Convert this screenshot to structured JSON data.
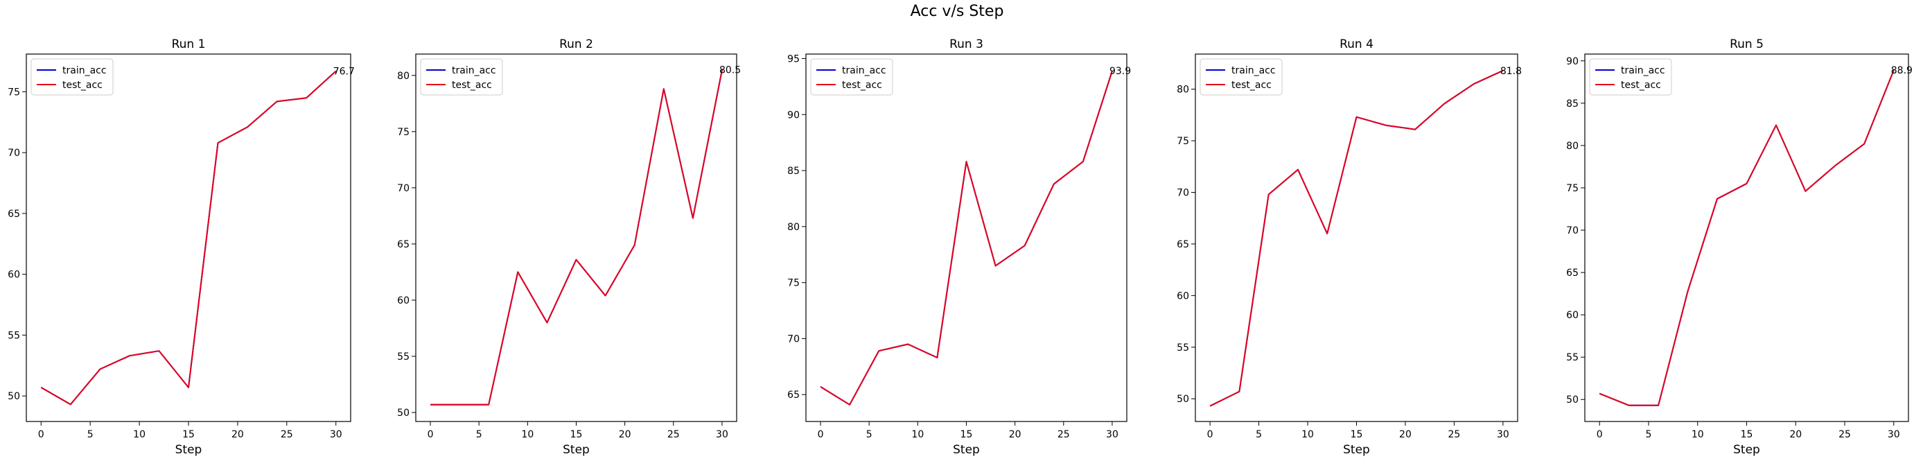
{
  "figure_title": "Acc v/s Step",
  "chart_data": [
    {
      "type": "line",
      "title": "Run 1",
      "xlabel": "Step",
      "ylabel": "",
      "x": [
        0,
        3,
        6,
        9,
        12,
        15,
        18,
        21,
        24,
        27,
        30
      ],
      "xticks": [
        0,
        5,
        10,
        15,
        20,
        25,
        30
      ],
      "yticks": [
        50,
        55,
        60,
        65,
        70,
        75
      ],
      "xlim": [
        -1.5,
        31.5
      ],
      "ylim": [
        47.9,
        78.1
      ],
      "end_label": "76.7",
      "legend": "top-left",
      "series": [
        {
          "name": "train_acc",
          "color": "#0000cc",
          "values": [
            50.7,
            49.3,
            52.2,
            53.3,
            53.7,
            50.7,
            70.8,
            72.1,
            74.2,
            74.5,
            76.7
          ]
        },
        {
          "name": "test_acc",
          "color": "#e6001a",
          "values": [
            50.7,
            49.3,
            52.2,
            53.3,
            53.7,
            50.7,
            70.8,
            72.1,
            74.2,
            74.5,
            76.7
          ]
        }
      ]
    },
    {
      "type": "line",
      "title": "Run 2",
      "xlabel": "Step",
      "ylabel": "",
      "x": [
        0,
        3,
        6,
        9,
        12,
        15,
        18,
        21,
        24,
        27,
        30
      ],
      "xticks": [
        0,
        5,
        10,
        15,
        20,
        25,
        30
      ],
      "yticks": [
        50,
        55,
        60,
        65,
        70,
        75,
        80
      ],
      "xlim": [
        -1.5,
        31.5
      ],
      "ylim": [
        49.2,
        81.9
      ],
      "end_label": "80.5",
      "legend": "top-left",
      "series": [
        {
          "name": "train_acc",
          "color": "#0000cc",
          "values": [
            50.7,
            50.7,
            50.7,
            62.5,
            58.0,
            63.6,
            60.4,
            64.9,
            78.8,
            67.3,
            80.5
          ]
        },
        {
          "name": "test_acc",
          "color": "#e6001a",
          "values": [
            50.7,
            50.7,
            50.7,
            62.5,
            58.0,
            63.6,
            60.4,
            64.9,
            78.8,
            67.3,
            80.5
          ]
        }
      ]
    },
    {
      "type": "line",
      "title": "Run 3",
      "xlabel": "Step",
      "ylabel": "",
      "x": [
        0,
        3,
        6,
        9,
        12,
        15,
        18,
        21,
        24,
        27,
        30
      ],
      "xticks": [
        0,
        5,
        10,
        15,
        20,
        25,
        30
      ],
      "yticks": [
        65,
        70,
        75,
        80,
        85,
        90,
        95
      ],
      "xlim": [
        -1.5,
        31.5
      ],
      "ylim": [
        62.6,
        95.4
      ],
      "end_label": "93.9",
      "legend": "top-left",
      "series": [
        {
          "name": "train_acc",
          "color": "#0000cc",
          "values": [
            65.7,
            64.1,
            68.9,
            69.5,
            68.3,
            85.8,
            76.5,
            78.3,
            83.8,
            85.8,
            93.9
          ]
        },
        {
          "name": "test_acc",
          "color": "#e6001a",
          "values": [
            65.7,
            64.1,
            68.9,
            69.5,
            68.3,
            85.8,
            76.5,
            78.3,
            83.8,
            85.8,
            93.9
          ]
        }
      ]
    },
    {
      "type": "line",
      "title": "Run 4",
      "xlabel": "Step",
      "ylabel": "",
      "x": [
        0,
        3,
        6,
        9,
        12,
        15,
        18,
        21,
        24,
        27,
        30
      ],
      "xticks": [
        0,
        5,
        10,
        15,
        20,
        25,
        30
      ],
      "yticks": [
        50,
        55,
        60,
        65,
        70,
        75,
        80
      ],
      "xlim": [
        -1.5,
        31.5
      ],
      "ylim": [
        47.8,
        83.4
      ],
      "end_label": "81.8",
      "legend": "top-left",
      "series": [
        {
          "name": "train_acc",
          "color": "#0000cc",
          "values": [
            49.3,
            50.7,
            69.8,
            72.2,
            66.0,
            77.3,
            76.5,
            76.1,
            78.6,
            80.5,
            81.8
          ]
        },
        {
          "name": "test_acc",
          "color": "#e6001a",
          "values": [
            49.3,
            50.7,
            69.8,
            72.2,
            66.0,
            77.3,
            76.5,
            76.1,
            78.6,
            80.5,
            81.8
          ]
        }
      ]
    },
    {
      "type": "line",
      "title": "Run 5",
      "xlabel": "Step",
      "ylabel": "",
      "x": [
        0,
        3,
        6,
        9,
        12,
        15,
        18,
        21,
        24,
        27,
        30
      ],
      "xticks": [
        0,
        5,
        10,
        15,
        20,
        25,
        30
      ],
      "yticks": [
        45,
        50,
        55,
        60,
        65,
        70,
        75,
        80,
        85,
        90
      ],
      "xlim": [
        -1.5,
        31.5
      ],
      "ylim": [
        47.4,
        90.8
      ],
      "end_label": "88.9",
      "legend": "top-left",
      "series": [
        {
          "name": "train_acc",
          "color": "#0000cc",
          "values": [
            50.7,
            49.3,
            49.3,
            62.8,
            73.7,
            75.5,
            82.4,
            74.6,
            77.6,
            80.2,
            88.9
          ]
        },
        {
          "name": "test_acc",
          "color": "#e6001a",
          "values": [
            50.7,
            49.3,
            49.3,
            62.8,
            73.7,
            75.5,
            82.4,
            74.6,
            77.6,
            80.2,
            88.9
          ]
        }
      ]
    }
  ]
}
